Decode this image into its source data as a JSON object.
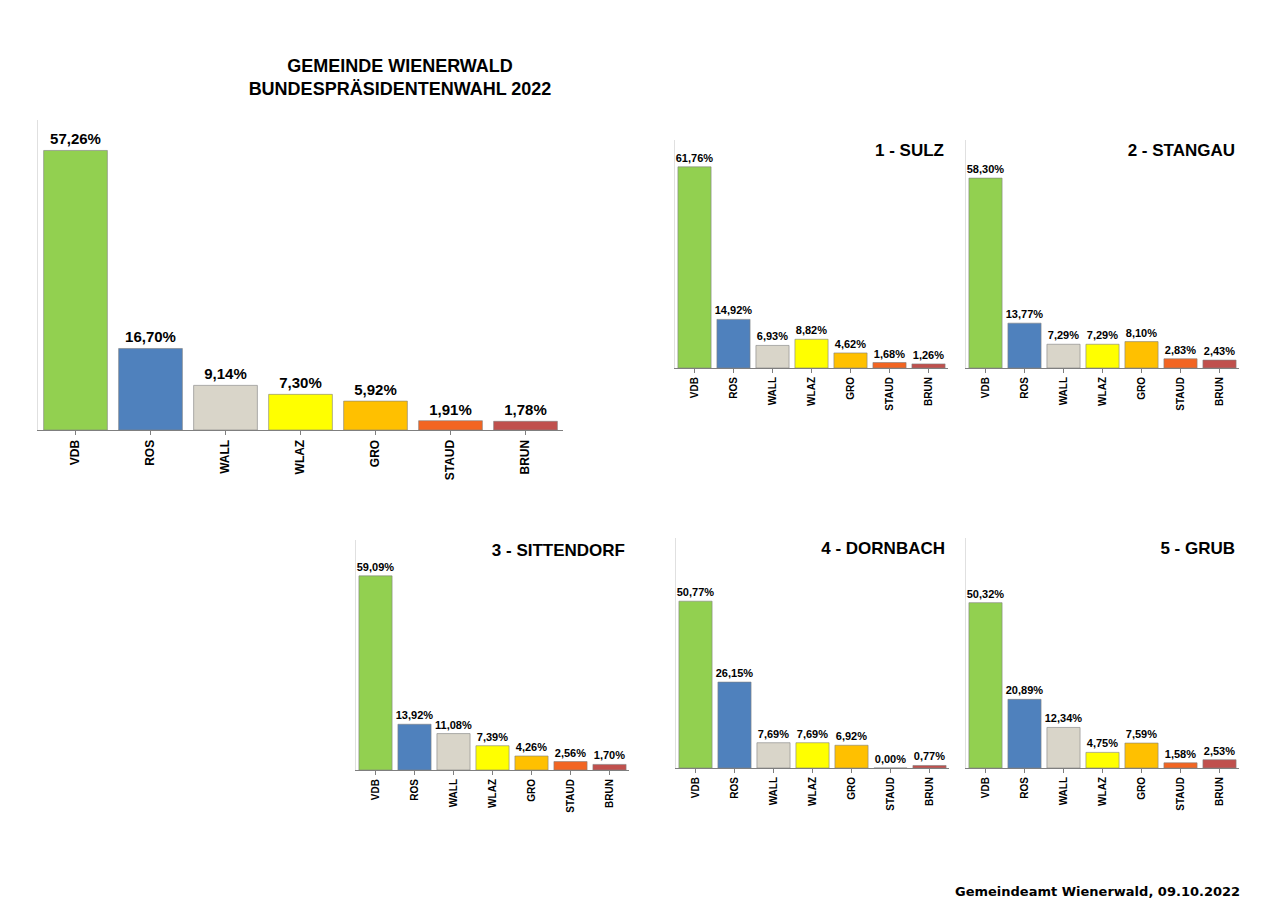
{
  "chart_data": [
    {
      "type": "bar",
      "title": "GEMEINDE WIENERWALD\nBUNDESPRÄSIDENTENWAHL 2022",
      "categories": [
        "VDB",
        "ROS",
        "WALL",
        "WLAZ",
        "GRO",
        "STAUD",
        "BRUN"
      ],
      "values": [
        57.26,
        16.7,
        9.14,
        7.3,
        5.92,
        1.91,
        1.78
      ],
      "value_labels": [
        "57,26%",
        "16,70%",
        "9,14%",
        "7,30%",
        "5,92%",
        "1,91%",
        "1,78%"
      ],
      "colors": [
        "#92d050",
        "#4f81bd",
        "#d9d5c9",
        "#ffff00",
        "#ffc000",
        "#f26522",
        "#c0504d"
      ],
      "ylim": [
        0,
        63.5
      ],
      "data_labels": true,
      "tick_labels": "x"
    },
    {
      "type": "bar",
      "title": "1 - SULZ",
      "categories": [
        "VDB",
        "ROS",
        "WALL",
        "WLAZ",
        "GRO",
        "STAUD",
        "BRUN"
      ],
      "values": [
        61.76,
        14.92,
        6.93,
        8.82,
        4.62,
        1.68,
        1.26
      ],
      "value_labels": [
        "61,76%",
        "14,92%",
        "6,93%",
        "8,82%",
        "4,62%",
        "1,68%",
        "1,26%"
      ],
      "colors": [
        "#92d050",
        "#4f81bd",
        "#d9d5c9",
        "#ffff00",
        "#ffc000",
        "#f26522",
        "#c0504d"
      ],
      "ylim": [
        0,
        70
      ],
      "data_labels": true,
      "tick_labels": "x"
    },
    {
      "type": "bar",
      "title": "2 - STANGAU",
      "categories": [
        "VDB",
        "ROS",
        "WALL",
        "WLAZ",
        "GRO",
        "STAUD",
        "BRUN"
      ],
      "values": [
        58.3,
        13.77,
        7.29,
        7.29,
        8.1,
        2.83,
        2.43
      ],
      "value_labels": [
        "58,30%",
        "13,77%",
        "7,29%",
        "7,29%",
        "8,10%",
        "2,83%",
        "2,43%"
      ],
      "colors": [
        "#92d050",
        "#4f81bd",
        "#d9d5c9",
        "#ffff00",
        "#ffc000",
        "#f26522",
        "#c0504d"
      ],
      "ylim": [
        0,
        70
      ],
      "data_labels": true,
      "tick_labels": "x"
    },
    {
      "type": "bar",
      "title": "3 - SITTENDORF",
      "categories": [
        "VDB",
        "ROS",
        "WALL",
        "WLAZ",
        "GRO",
        "STAUD",
        "BRUN"
      ],
      "values": [
        59.09,
        13.92,
        11.08,
        7.39,
        4.26,
        2.56,
        1.7
      ],
      "value_labels": [
        "59,09%",
        "13,92%",
        "11,08%",
        "7,39%",
        "4,26%",
        "2,56%",
        "1,70%"
      ],
      "colors": [
        "#92d050",
        "#4f81bd",
        "#d9d5c9",
        "#ffff00",
        "#ffc000",
        "#f26522",
        "#c0504d"
      ],
      "ylim": [
        0,
        70
      ],
      "data_labels": true,
      "tick_labels": "x"
    },
    {
      "type": "bar",
      "title": "4 - DORNBACH",
      "categories": [
        "VDB",
        "ROS",
        "WALL",
        "WLAZ",
        "GRO",
        "STAUD",
        "BRUN"
      ],
      "values": [
        50.77,
        26.15,
        7.69,
        7.69,
        6.92,
        0.0,
        0.77
      ],
      "value_labels": [
        "50,77%",
        "26,15%",
        "7,69%",
        "7,69%",
        "6,92%",
        "0,00%",
        "0,77%"
      ],
      "colors": [
        "#92d050",
        "#4f81bd",
        "#d9d5c9",
        "#ffff00",
        "#ffc000",
        "#f26522",
        "#c0504d"
      ],
      "ylim": [
        0,
        70
      ],
      "data_labels": true,
      "tick_labels": "x"
    },
    {
      "type": "bar",
      "title": "5 - GRUB",
      "categories": [
        "VDB",
        "ROS",
        "WALL",
        "WLAZ",
        "GRO",
        "STAUD",
        "BRUN"
      ],
      "values": [
        50.32,
        20.89,
        12.34,
        4.75,
        7.59,
        1.58,
        2.53
      ],
      "value_labels": [
        "50,32%",
        "20,89%",
        "12,34%",
        "4,75%",
        "7,59%",
        "1,58%",
        "2,53%"
      ],
      "colors": [
        "#92d050",
        "#4f81bd",
        "#d9d5c9",
        "#ffff00",
        "#ffc000",
        "#f26522",
        "#c0504d"
      ],
      "ylim": [
        0,
        70
      ],
      "data_labels": true,
      "tick_labels": "x"
    }
  ],
  "footer": "Gemeindeamt Wienerwald, 09.10.2022"
}
